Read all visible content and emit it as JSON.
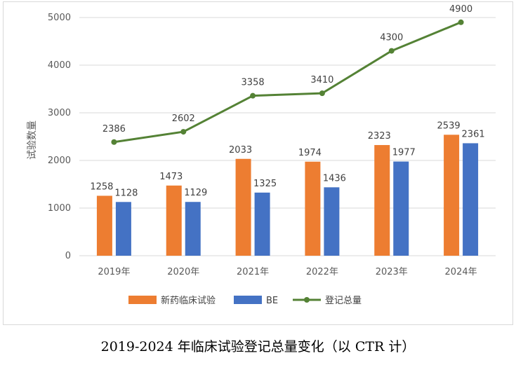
{
  "chart_data": {
    "type": "bar",
    "caption": "2019-2024 年临床试验登记总量变化（以 CTR 计）",
    "ylabel": "试验数量",
    "ylim": [
      0,
      5000
    ],
    "yticks": [
      0,
      1000,
      2000,
      3000,
      4000,
      5000
    ],
    "grid": true,
    "legend_position": "bottom",
    "categories": [
      "2019年",
      "2020年",
      "2021年",
      "2022年",
      "2023年",
      "2024年"
    ],
    "series": [
      {
        "name": "新药临床试验",
        "kind": "bar",
        "color": "#ED7D31",
        "values": [
          1258,
          1473,
          2033,
          1974,
          2323,
          2539
        ]
      },
      {
        "name": "BE",
        "kind": "bar",
        "color": "#4472C4",
        "values": [
          1128,
          1129,
          1325,
          1436,
          1977,
          2361
        ]
      },
      {
        "name": "登记总量",
        "kind": "line",
        "color": "#548235",
        "values": [
          2386,
          2602,
          3358,
          3410,
          4300,
          4900
        ]
      }
    ]
  }
}
